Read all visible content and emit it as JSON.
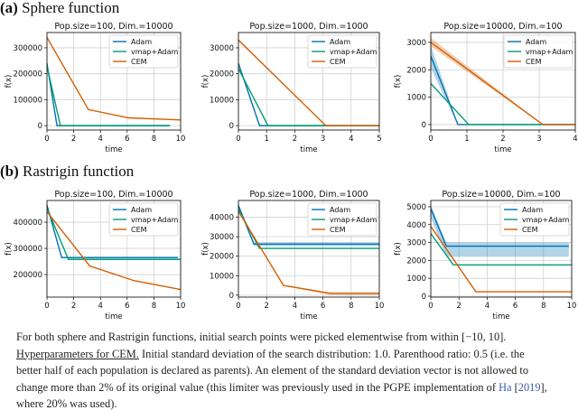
{
  "sections": [
    {
      "label": "(a)",
      "title": "Sphere function"
    },
    {
      "label": "(b)",
      "title": "Rastrigin function"
    }
  ],
  "colors": {
    "Adam": "#0072B2",
    "vmap+Adam": "#009E73",
    "CEM": "#D55E00"
  },
  "chart_data": [
    {
      "type": "line",
      "title": "Pop.size=100, Dim.=10000",
      "xlabel": "time",
      "ylabel": "f(x)",
      "xlim": [
        0,
        10
      ],
      "ylim": [
        -17000,
        359000
      ],
      "xticks": [
        0,
        2,
        4,
        6,
        8,
        10
      ],
      "yticks": [
        0,
        100000,
        200000,
        300000
      ],
      "grid": true,
      "legend": "top-right",
      "series": [
        {
          "name": "Adam",
          "x": [
            0,
            0.75,
            9.2
          ],
          "y": [
            240000,
            0,
            0
          ]
        },
        {
          "name": "vmap+Adam",
          "x": [
            0,
            1.0,
            9.2
          ],
          "y": [
            230000,
            0,
            0
          ]
        },
        {
          "name": "CEM",
          "x": [
            0,
            3.1,
            6.1,
            10
          ],
          "y": [
            340000,
            62000,
            30000,
            22000
          ]
        }
      ]
    },
    {
      "type": "line",
      "title": "Pop.size=1000, Dim.=1000",
      "xlabel": "time",
      "ylabel": "f(x)",
      "xlim": [
        0,
        5
      ],
      "ylim": [
        -1700,
        35900
      ],
      "xticks": [
        0,
        1,
        2,
        3,
        4,
        5
      ],
      "yticks": [
        0,
        10000,
        20000,
        30000
      ],
      "grid": true,
      "legend": "top-right",
      "series": [
        {
          "name": "Adam",
          "x": [
            0,
            0.75,
            5
          ],
          "y": [
            24000,
            0,
            0
          ]
        },
        {
          "name": "vmap+Adam",
          "x": [
            0,
            1.05,
            5
          ],
          "y": [
            22000,
            0,
            0
          ]
        },
        {
          "name": "CEM",
          "x": [
            0,
            3.1,
            5
          ],
          "y": [
            33000,
            0,
            0
          ],
          "lower": [
            32500,
            0,
            0
          ],
          "upper": [
            33500,
            0,
            0
          ]
        }
      ]
    },
    {
      "type": "line",
      "title": "Pop.size=10000, Dim.=100",
      "xlabel": "time",
      "ylabel": "f(x)",
      "xlim": [
        0,
        4
      ],
      "ylim": [
        -200,
        3360
      ],
      "xticks": [
        0,
        1,
        2,
        3,
        4
      ],
      "yticks": [
        0,
        1000,
        2000,
        3000
      ],
      "grid": true,
      "legend": "top-right",
      "series": [
        {
          "name": "Adam",
          "x": [
            0,
            0.75,
            4
          ],
          "y": [
            2500,
            0,
            0
          ],
          "lower": [
            2050,
            0,
            0
          ],
          "upper": [
            2900,
            0,
            0
          ]
        },
        {
          "name": "vmap+Adam",
          "x": [
            0,
            1.05,
            4
          ],
          "y": [
            1500,
            0,
            0
          ]
        },
        {
          "name": "CEM",
          "x": [
            0,
            3.1,
            4
          ],
          "y": [
            3000,
            0,
            0
          ],
          "lower": [
            2850,
            0,
            0
          ],
          "upper": [
            3170,
            0,
            0
          ]
        }
      ]
    },
    {
      "type": "line",
      "title": "Pop.size=100, Dim.=10000",
      "xlabel": "time",
      "ylabel": "f(x)",
      "xlim": [
        0,
        10
      ],
      "ylim": [
        114000,
        483000
      ],
      "xticks": [
        0,
        2,
        4,
        6,
        8,
        10
      ],
      "yticks": [
        200000,
        300000,
        400000
      ],
      "grid": true,
      "legend": "top-right",
      "series": [
        {
          "name": "Adam",
          "x": [
            0,
            1.1,
            9.8
          ],
          "y": [
            465000,
            265000,
            265000
          ],
          "lower": [
            460000,
            262000,
            262000
          ],
          "upper": [
            470000,
            268000,
            268000
          ]
        },
        {
          "name": "vmap+Adam",
          "x": [
            0,
            1.6,
            10
          ],
          "y": [
            455000,
            258000,
            258000
          ]
        },
        {
          "name": "CEM",
          "x": [
            0,
            3.2,
            6.5,
            10
          ],
          "y": [
            440000,
            233000,
            177000,
            143000
          ]
        }
      ]
    },
    {
      "type": "line",
      "title": "Pop.size=1000, Dim.=1000",
      "xlabel": "time",
      "ylabel": "f(x)",
      "xlim": [
        0,
        10
      ],
      "ylim": [
        -1000,
        48600
      ],
      "xticks": [
        0,
        2,
        4,
        6,
        8,
        10
      ],
      "yticks": [
        0,
        10000,
        20000,
        30000,
        40000
      ],
      "grid": true,
      "legend": "top-right",
      "series": [
        {
          "name": "Adam",
          "x": [
            0,
            1.1,
            10
          ],
          "y": [
            46000,
            26200,
            26200
          ],
          "lower": [
            45000,
            25200,
            25200
          ],
          "upper": [
            47000,
            27200,
            27200
          ]
        },
        {
          "name": "vmap+Adam",
          "x": [
            0,
            1.5,
            10
          ],
          "y": [
            44000,
            24000,
            24000
          ]
        },
        {
          "name": "CEM",
          "x": [
            0,
            3.2,
            6.5,
            10
          ],
          "y": [
            43000,
            5000,
            1000,
            1000
          ],
          "lower": [
            42500,
            4800,
            0,
            0
          ],
          "upper": [
            43500,
            5200,
            1300,
            1300
          ]
        }
      ]
    },
    {
      "type": "line",
      "title": "Pop.size=10000, Dim.=100",
      "xlabel": "time",
      "ylabel": "f(x)",
      "xlim": [
        0,
        10
      ],
      "ylim": [
        -50,
        5350
      ],
      "xticks": [
        0,
        2,
        4,
        6,
        8,
        10
      ],
      "yticks": [
        0,
        1000,
        2000,
        3000,
        4000,
        5000
      ],
      "grid": true,
      "legend": "top-right",
      "series": [
        {
          "name": "Adam",
          "x": [
            0,
            1.1,
            9.8
          ],
          "y": [
            4900,
            2800,
            2800
          ],
          "lower": [
            4400,
            2200,
            2200
          ],
          "upper": [
            5100,
            3000,
            3000
          ]
        },
        {
          "name": "vmap+Adam",
          "x": [
            0,
            1.6,
            10
          ],
          "y": [
            3500,
            1750,
            1750
          ]
        },
        {
          "name": "CEM",
          "x": [
            0,
            3.2,
            10
          ],
          "y": [
            3900,
            250,
            250
          ]
        }
      ]
    }
  ],
  "paragraph": {
    "line1": "For both sphere and Rastrigin functions, initial search points were picked elementwise from within [−10, 10].",
    "line2_heading": "Hyperparameters for CEM.",
    "line2_rest": " Initial standard deviation of the search distribution: 1.0. Parenthood ratio: 0.5 (i.e. the",
    "line3": "better half of each population is declared as parents). An element of the standard deviation vector is not allowed to",
    "line4_pre": "change more than 2% of its original value (this limiter was previously used in the PGPE implementation of ",
    "line4_author": "Ha",
    "line4_open": " [",
    "line4_year": "2019",
    "line4_close": "],",
    "line5": "where 20% was used)."
  }
}
